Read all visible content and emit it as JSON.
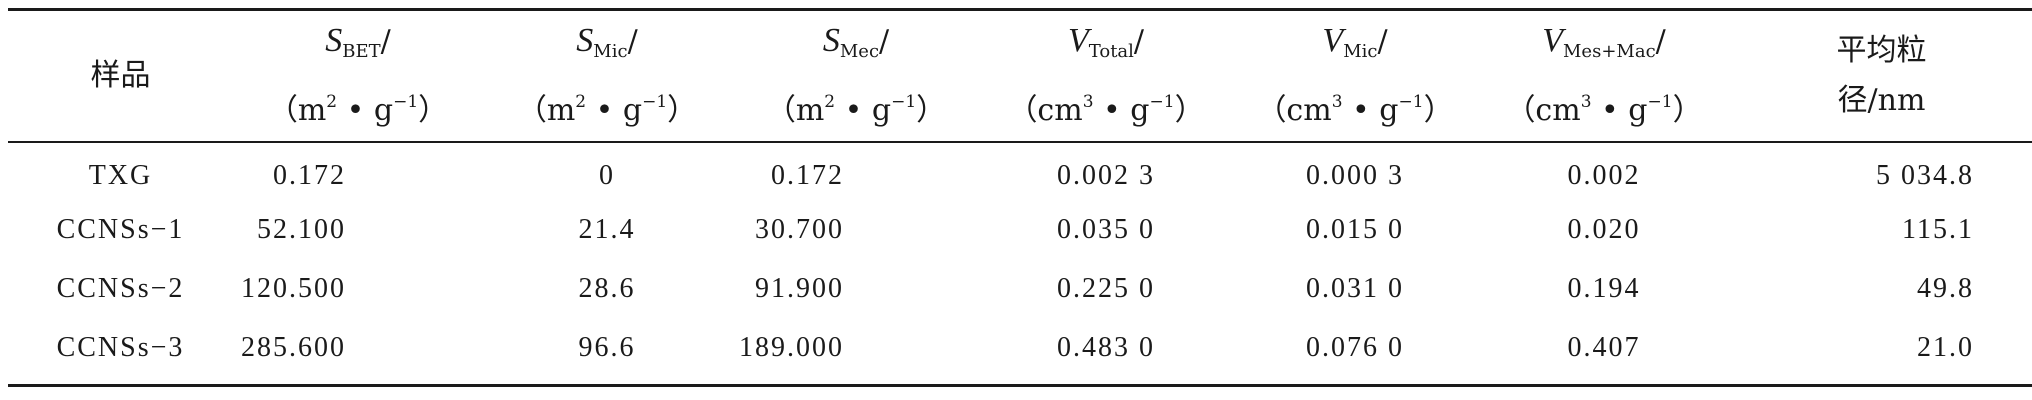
{
  "table": {
    "headers": [
      {
        "line1": "样品",
        "line2": ""
      },
      {
        "sym": "S",
        "sub": "BET",
        "unit_pre": "（m",
        "sup": "2",
        "unit_post": " • g",
        "sup2": "−1",
        "close": "）"
      },
      {
        "sym": "S",
        "sub": "Mic",
        "unit_pre": "（m",
        "sup": "2",
        "unit_post": " • g",
        "sup2": "−1",
        "close": "）"
      },
      {
        "sym": "S",
        "sub": "Mec",
        "unit_pre": "（m",
        "sup": "2",
        "unit_post": " • g",
        "sup2": "−1",
        "close": "）"
      },
      {
        "sym": "V",
        "sub": "Total",
        "unit_pre": "（cm",
        "sup": "3",
        "unit_post": " • g",
        "sup2": "−1",
        "close": "）"
      },
      {
        "sym": "V",
        "sub": "Mic",
        "unit_pre": "（cm",
        "sup": "3",
        "unit_post": " • g",
        "sup2": "−1",
        "close": "）"
      },
      {
        "sym": "V",
        "sub": "Mes+Mac",
        "unit_pre": "（cm",
        "sup": "3",
        "unit_post": " • g",
        "sup2": "−1",
        "close": "）"
      },
      {
        "line1": "平均粒",
        "line2": "径/nm"
      }
    ],
    "slash": "/",
    "rows": [
      [
        "TXG",
        "0.172",
        "0",
        "0.172",
        "0.002 3",
        "0.000 3",
        "0.002",
        "5 034.8"
      ],
      [
        "CCNSs−1",
        "52.100",
        "21.4",
        "30.700",
        "0.035 0",
        "0.015 0",
        "0.020",
        "115.1"
      ],
      [
        "CCNSs−2",
        "120.500",
        "28.6",
        "91.900",
        "0.225 0",
        "0.031 0",
        "0.194",
        "49.8"
      ],
      [
        "CCNSs−3",
        "285.600",
        "96.6",
        "189.000",
        "0.483 0",
        "0.076 0",
        "0.407",
        "21.0"
      ]
    ]
  }
}
